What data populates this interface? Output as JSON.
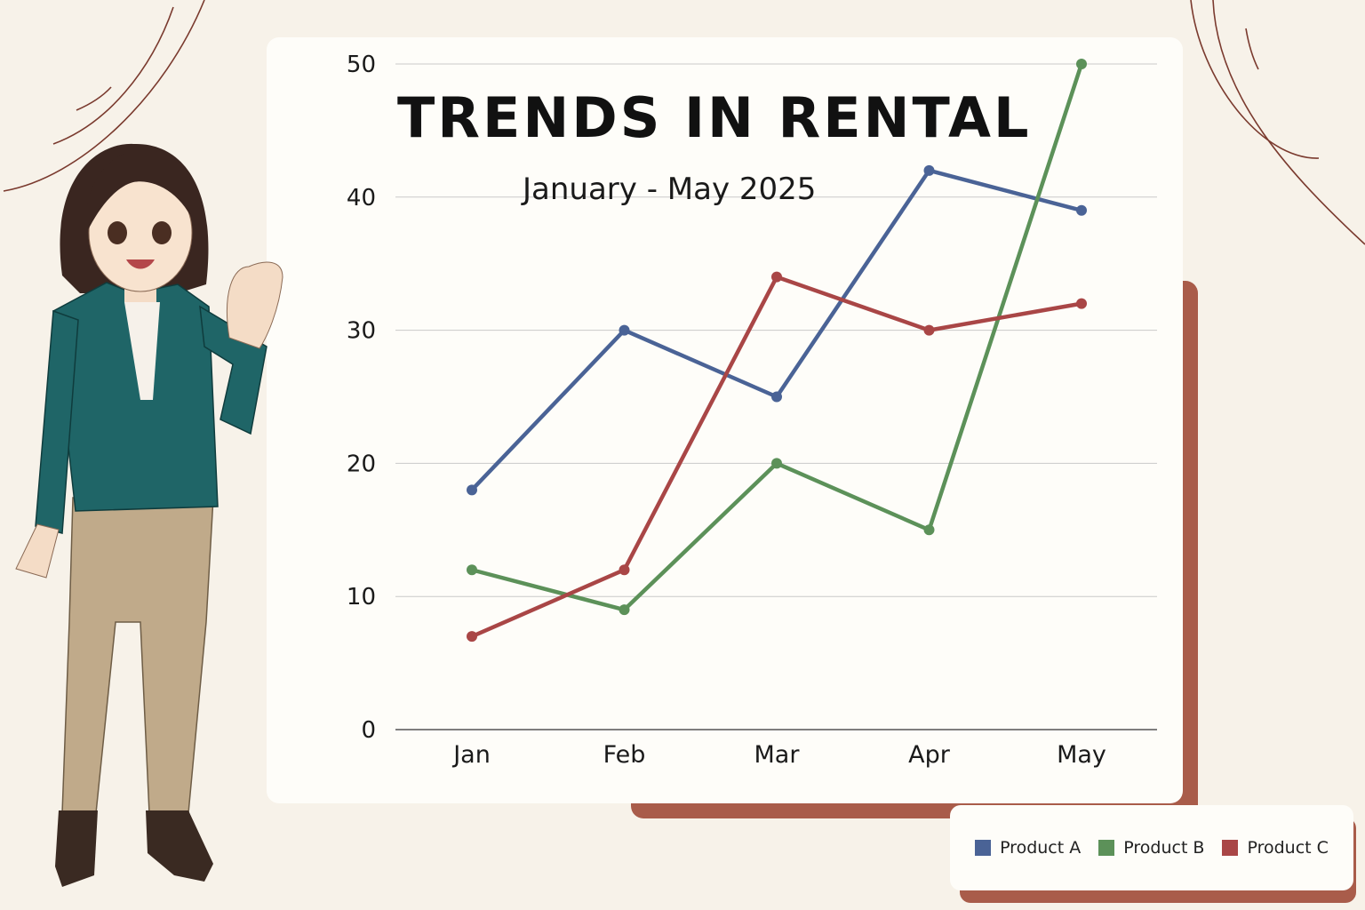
{
  "chart_data": {
    "type": "line",
    "title": "TRENDS IN RENTAL",
    "subtitle": "January - May 2025",
    "categories": [
      "Jan",
      "Feb",
      "Mar",
      "Apr",
      "May"
    ],
    "series": [
      {
        "name": "Product A",
        "color": "#4a6396",
        "values": [
          18,
          30,
          25,
          42,
          39
        ]
      },
      {
        "name": "Product B",
        "color": "#5c9159",
        "values": [
          12,
          9,
          20,
          15,
          50
        ]
      },
      {
        "name": "Product C",
        "color": "#a94646",
        "values": [
          7,
          12,
          34,
          30,
          32
        ]
      }
    ],
    "ylim": [
      0,
      50
    ],
    "yticks": [
      "0",
      "10",
      "20",
      "30",
      "40",
      "50"
    ],
    "grid": true,
    "legend_position": "bottom-right"
  }
}
